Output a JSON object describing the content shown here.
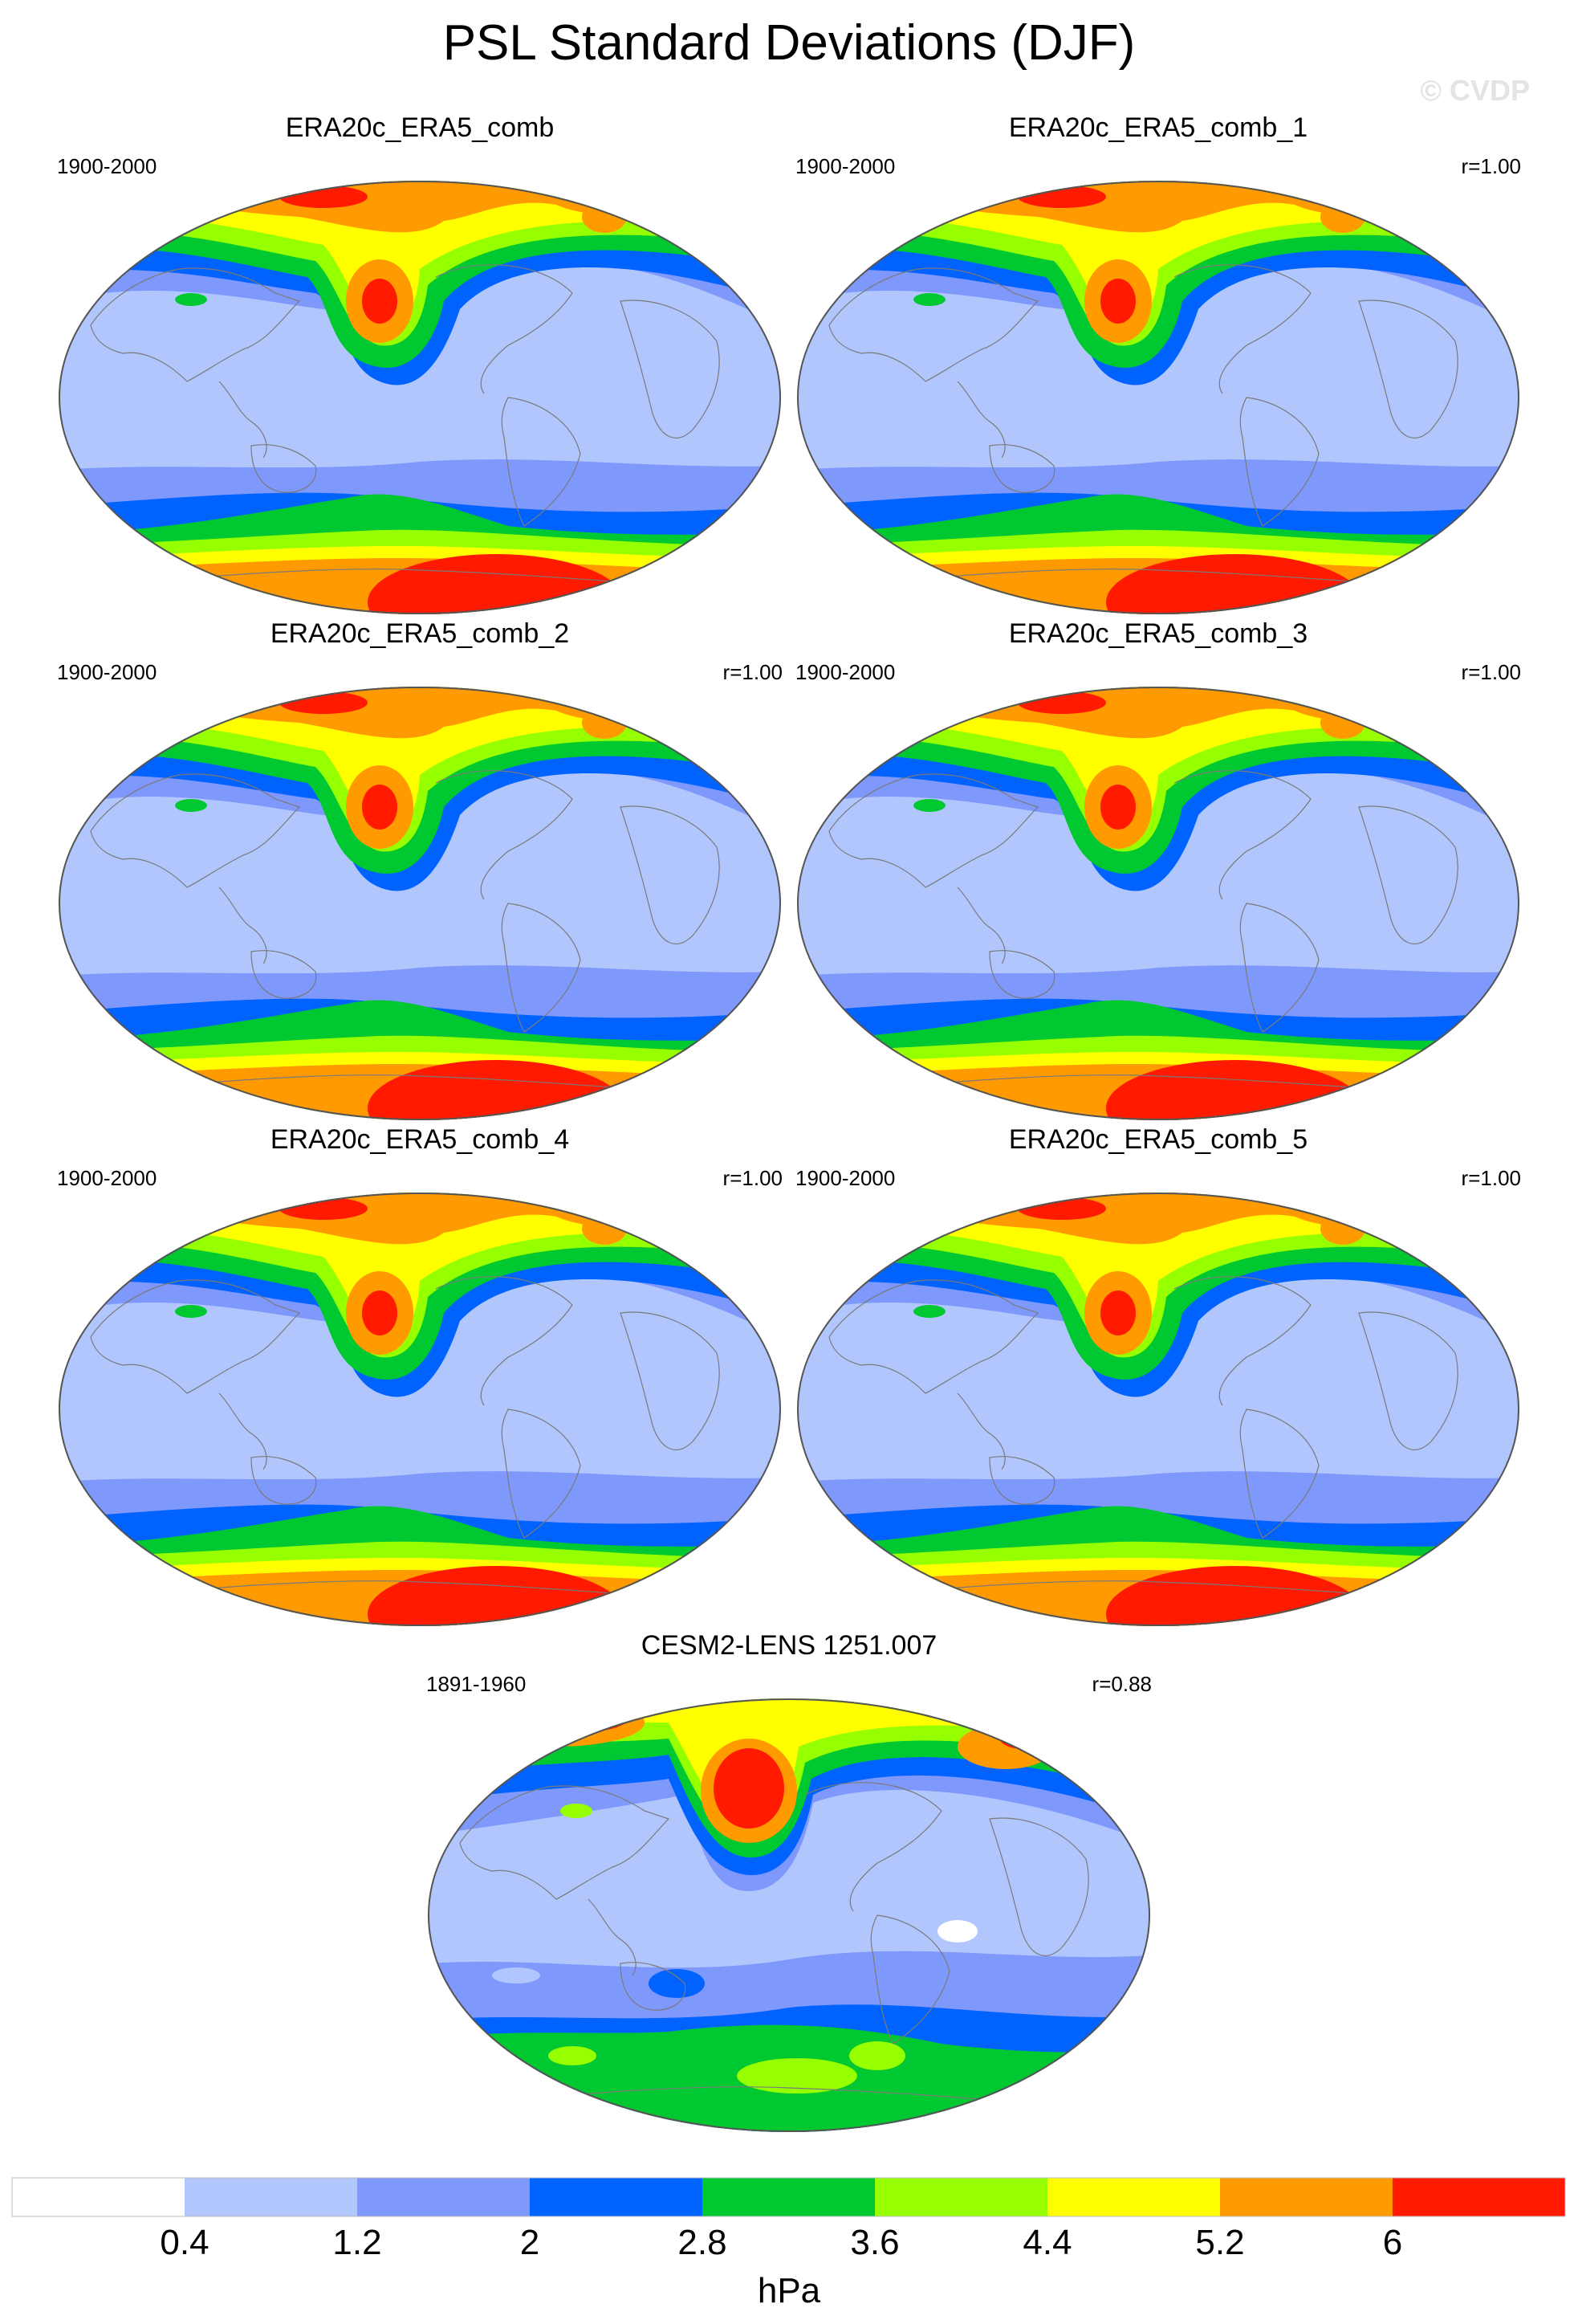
{
  "title": "PSL Standard Deviations (DJF)",
  "watermark": "© CVDP",
  "panels": [
    {
      "name": "ERA20c_ERA5_comb",
      "period": "1900-2000",
      "corr": ""
    },
    {
      "name": "ERA20c_ERA5_comb_1",
      "period": "1900-2000",
      "corr": "r=1.00"
    },
    {
      "name": "ERA20c_ERA5_comb_2",
      "period": "1900-2000",
      "corr": "r=1.00"
    },
    {
      "name": "ERA20c_ERA5_comb_3",
      "period": "1900-2000",
      "corr": "r=1.00"
    },
    {
      "name": "ERA20c_ERA5_comb_4",
      "period": "1900-2000",
      "corr": "r=1.00"
    },
    {
      "name": "ERA20c_ERA5_comb_5",
      "period": "1900-2000",
      "corr": "r=1.00"
    },
    {
      "name": "CESM2-LENS 1251.007",
      "period": "1891-1960",
      "corr": "r=0.88"
    }
  ],
  "chart_data": {
    "type": "heatmap",
    "title": "PSL Standard Deviations (DJF)",
    "projection": "global map (Robinson-like ellipse)",
    "colorbar": {
      "unit": "hPa",
      "levels": [
        0.4,
        1.2,
        2,
        2.8,
        3.6,
        4.4,
        5.2,
        6
      ],
      "level_labels": [
        "0.4",
        "1.2",
        "2",
        "2.8",
        "3.6",
        "4.4",
        "5.2",
        "6"
      ],
      "colors": [
        "#ffffff",
        "#b2c6fe",
        "#7f98fb",
        "#0062ff",
        "#00c831",
        "#96ff00",
        "#ffff00",
        "#ff9a00",
        "#ff1a00"
      ]
    },
    "pattern_correlations": [
      null,
      1.0,
      1.0,
      1.0,
      1.0,
      1.0,
      0.88
    ]
  }
}
